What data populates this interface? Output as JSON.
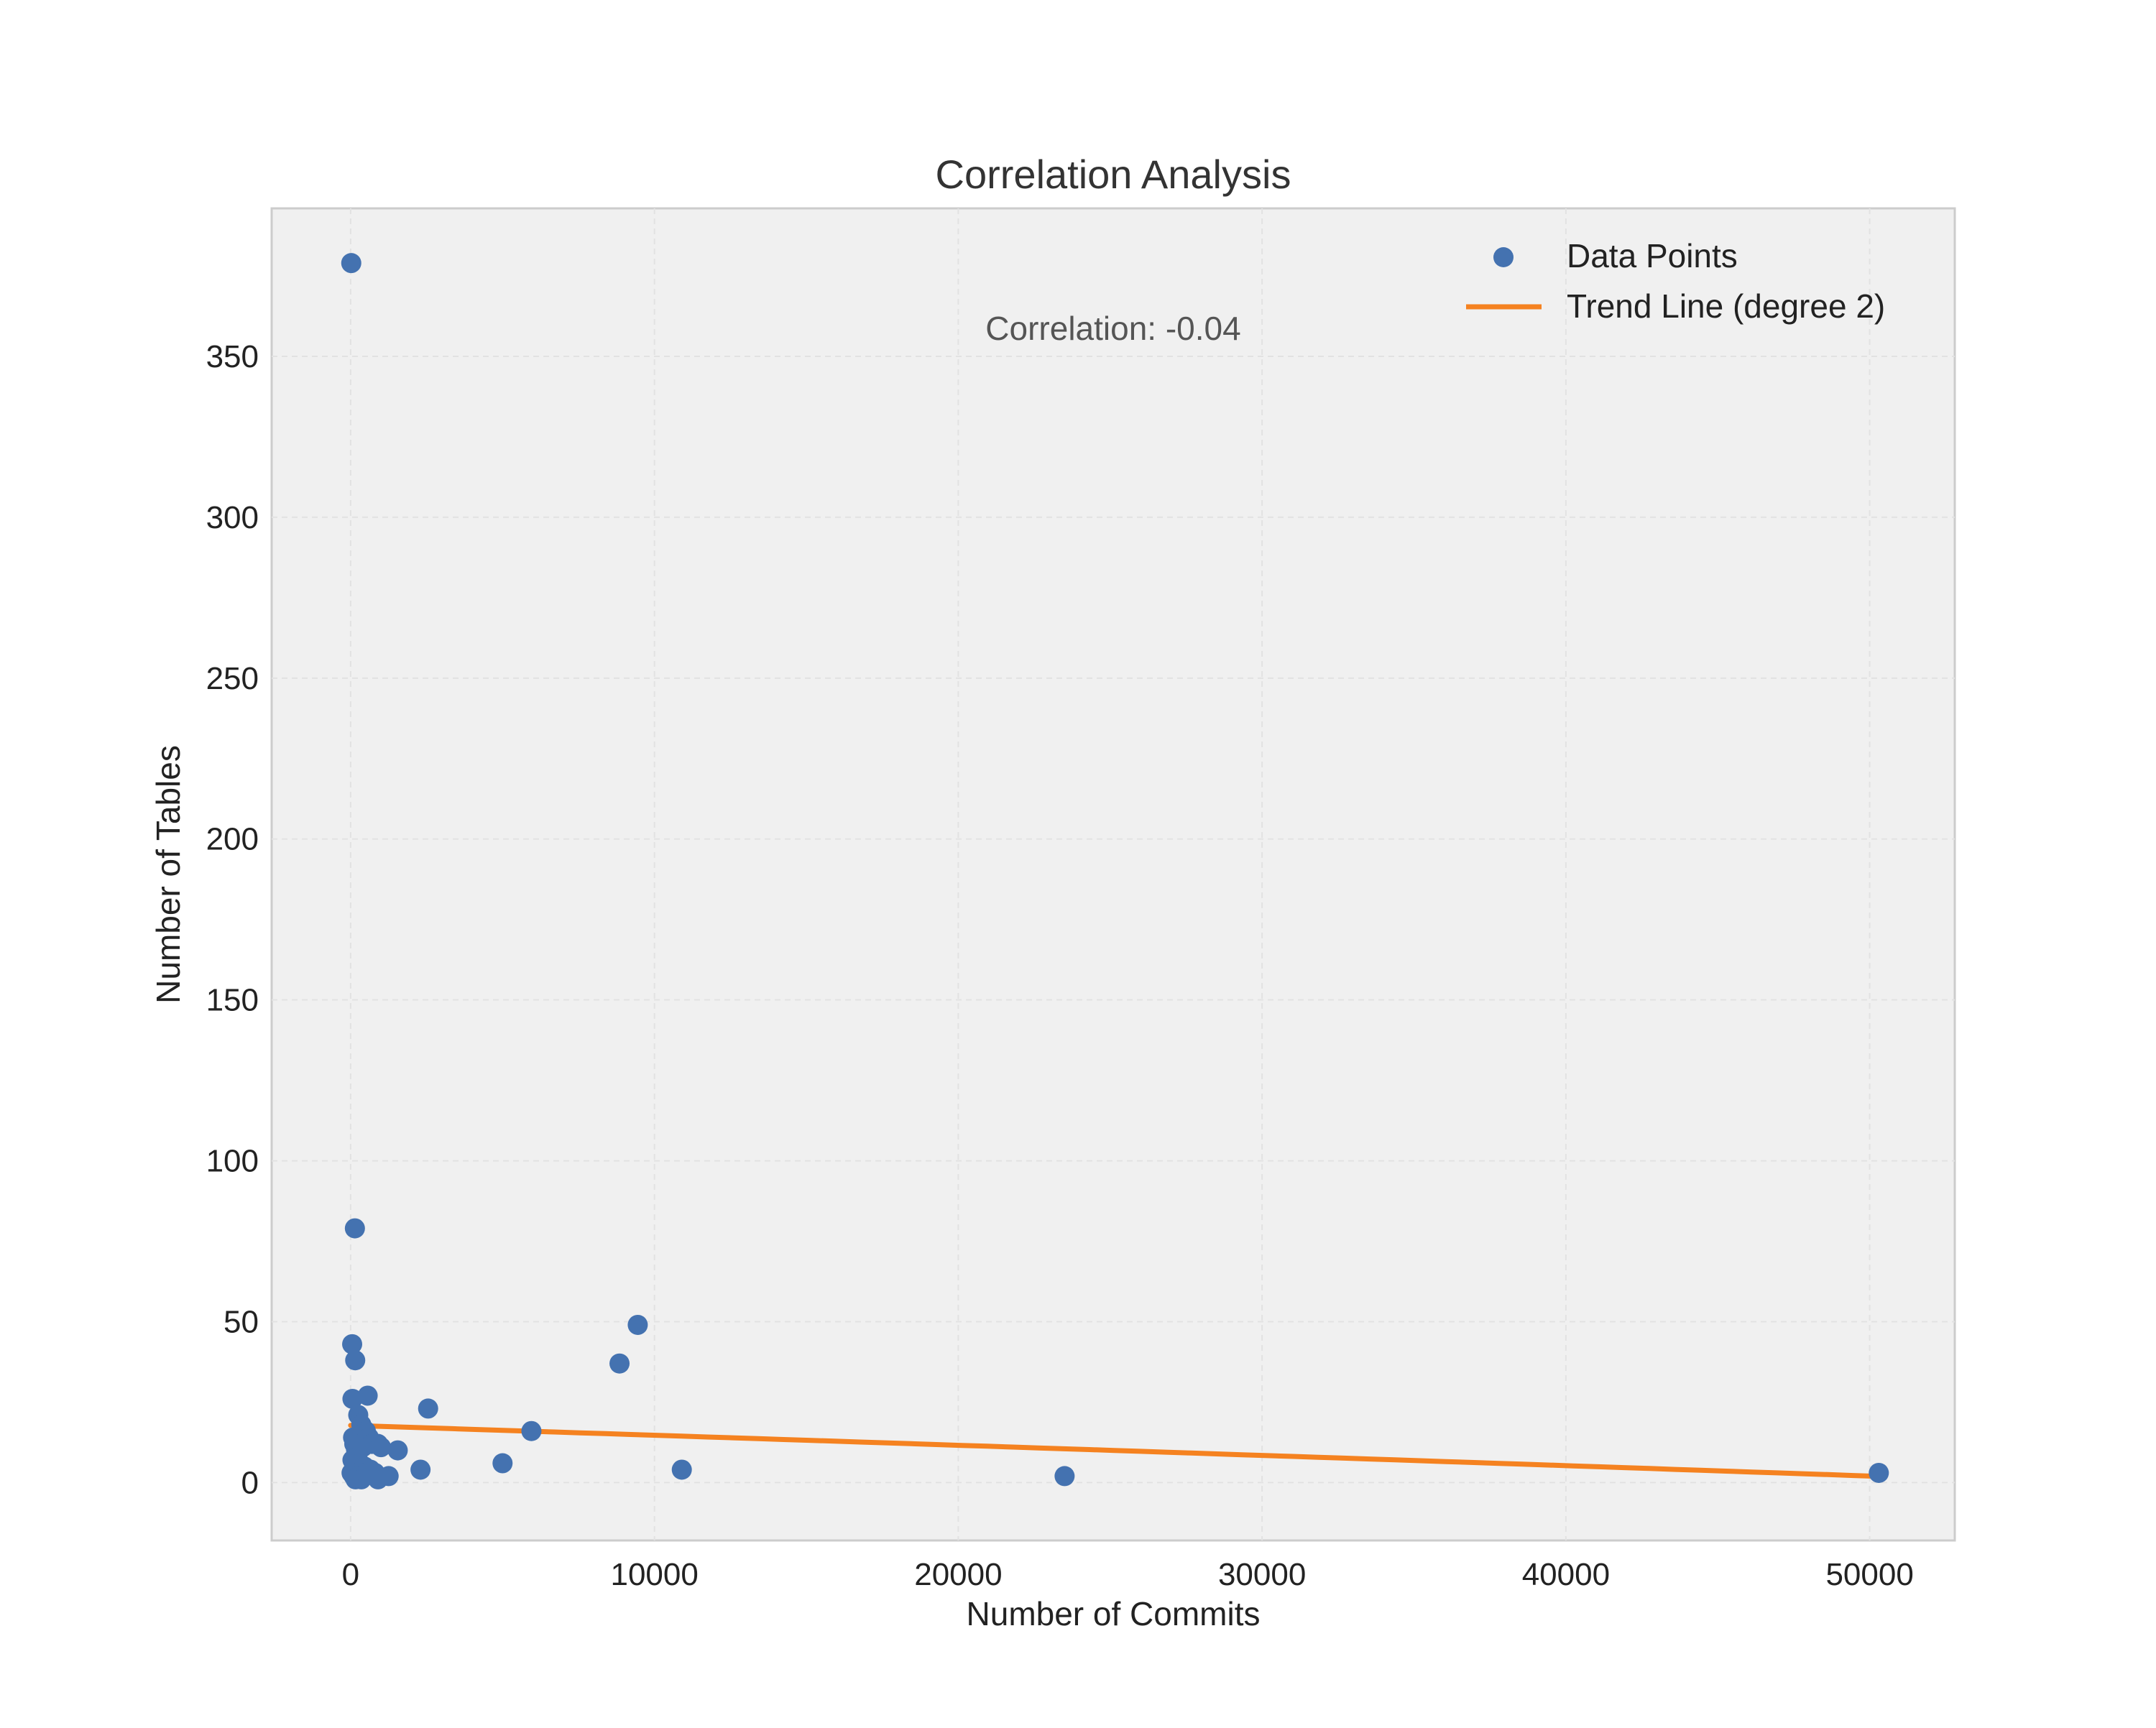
{
  "chart_data": {
    "type": "scatter",
    "title": "Correlation Analysis",
    "xlabel": "Number of Commits",
    "ylabel": "Number of Tables",
    "xlim": [
      -2600,
      52800
    ],
    "ylim": [
      -18,
      396
    ],
    "xticks": [
      0,
      10000,
      20000,
      30000,
      40000,
      50000
    ],
    "yticks": [
      0,
      50,
      100,
      150,
      200,
      250,
      300,
      350
    ],
    "grid": true,
    "legend_position": "top-right",
    "annotation": "Correlation: -0.04",
    "colors": {
      "points": "#4472b0",
      "trend": "#f58220",
      "plot_bg": "#f0f0f0",
      "frame": "#cccccc"
    },
    "series": [
      {
        "name": "Data Points",
        "kind": "scatter",
        "points": [
          [
            20,
            379
          ],
          [
            140,
            79
          ],
          [
            50,
            43
          ],
          [
            150,
            38
          ],
          [
            60,
            26
          ],
          [
            560,
            27
          ],
          [
            250,
            21
          ],
          [
            350,
            18
          ],
          [
            500,
            16
          ],
          [
            600,
            14
          ],
          [
            700,
            12
          ],
          [
            900,
            12
          ],
          [
            400,
            11
          ],
          [
            1000,
            11
          ],
          [
            80,
            14
          ],
          [
            120,
            12
          ],
          [
            180,
            10
          ],
          [
            220,
            8
          ],
          [
            60,
            7
          ],
          [
            300,
            6
          ],
          [
            450,
            5
          ],
          [
            650,
            4
          ],
          [
            800,
            3
          ],
          [
            30,
            3
          ],
          [
            100,
            2
          ],
          [
            160,
            1
          ],
          [
            260,
            2
          ],
          [
            350,
            1
          ],
          [
            500,
            3
          ],
          [
            900,
            1
          ],
          [
            1250,
            2
          ],
          [
            1550,
            10
          ],
          [
            2300,
            4
          ],
          [
            2550,
            23
          ],
          [
            5000,
            6
          ],
          [
            5950,
            16
          ],
          [
            8850,
            37
          ],
          [
            9450,
            49
          ],
          [
            10900,
            4
          ],
          [
            23500,
            2
          ],
          [
            50300,
            3
          ]
        ]
      },
      {
        "name": "Trend Line (degree 2)",
        "kind": "line",
        "coefficients": {
          "c0": 17.77,
          "c1": -0.000305,
          "c2": -2e-10
        },
        "x_range": [
          0,
          50300
        ]
      }
    ]
  }
}
